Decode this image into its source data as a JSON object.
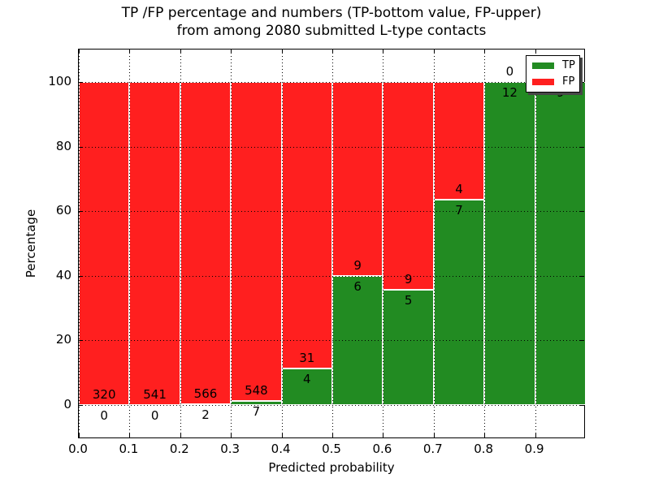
{
  "title": {
    "line1": "TP /FP percentage and numbers (TP-bottom value, FP-upper)",
    "line2": "from among 2080 submitted L-type contacts"
  },
  "axes": {
    "x_label": "Predicted probability",
    "y_label": "Percentage",
    "x_tick_labels": [
      "0.0",
      "0.1",
      "0.2",
      "0.3",
      "0.4",
      "0.5",
      "0.6",
      "0.7",
      "0.8",
      "0.9"
    ],
    "y_tick_labels": [
      "0",
      "20",
      "40",
      "60",
      "80",
      "100"
    ],
    "y_tick_values": [
      0,
      20,
      40,
      60,
      80,
      100
    ]
  },
  "legend": {
    "items": [
      {
        "label": "TP",
        "color": "#228b22"
      },
      {
        "label": "FP",
        "color": "#ff1f1f"
      }
    ],
    "position": "upper right"
  },
  "chart_data": {
    "type": "bar",
    "stacked": true,
    "normalized_to_percent": true,
    "title": "TP /FP percentage and numbers (TP-bottom value, FP-upper) from among 2080 submitted L-type contacts",
    "xlabel": "Predicted probability",
    "ylabel": "Percentage",
    "xlim": [
      0.0,
      1.0
    ],
    "ylim": [
      -10.5,
      110
    ],
    "grid": "dotted",
    "total_contacts": 2080,
    "categories": [
      "0.0-0.1",
      "0.1-0.2",
      "0.2-0.3",
      "0.3-0.4",
      "0.4-0.5",
      "0.5-0.6",
      "0.6-0.7",
      "0.7-0.8",
      "0.8-0.9",
      "0.9-1.0"
    ],
    "series": [
      {
        "name": "TP",
        "color": "#228b22",
        "counts": [
          0,
          0,
          2,
          7,
          4,
          6,
          5,
          7,
          12,
          9
        ]
      },
      {
        "name": "FP",
        "color": "#ff1f1f",
        "counts": [
          320,
          541,
          566,
          548,
          31,
          9,
          9,
          4,
          0,
          0
        ]
      }
    ],
    "tp_percent": [
      0.0,
      0.0,
      0.35,
      1.26,
      11.43,
      40.0,
      35.71,
      63.64,
      100.0,
      100.0
    ]
  }
}
